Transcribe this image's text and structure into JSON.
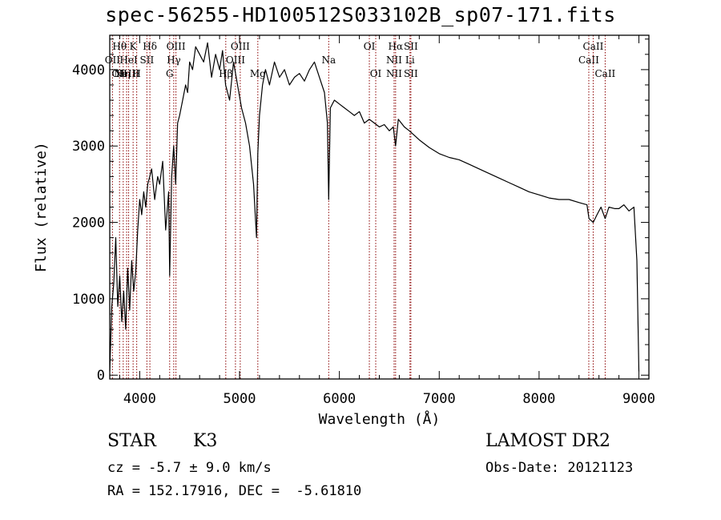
{
  "title": "spec-56255-HD100512S033102B_sp07-171.fits",
  "footer": {
    "class_label": "STAR",
    "subclass": "K3",
    "cz": "cz = -5.7 ± 9.0 km/s",
    "radec": "RA = 152.17916, DEC =  -5.61810",
    "survey": "LAMOST DR2",
    "obs_date": "Obs-Date: 20121123"
  },
  "chart_data": {
    "type": "line",
    "title": "spec-56255-HD100512S033102B_sp07-171.fits",
    "xlabel": "Wavelength (Å)",
    "ylabel": "Flux (relative)",
    "xlim": [
      3700,
      9100
    ],
    "ylim": [
      -50,
      4450
    ],
    "xticks": [
      4000,
      5000,
      6000,
      7000,
      8000,
      9000
    ],
    "yticks": [
      0,
      1000,
      2000,
      3000,
      4000
    ],
    "grid": false,
    "line_color": "#000000",
    "marker_color": "#8b0000",
    "series": [
      {
        "x": [
          3700,
          3720,
          3740,
          3760,
          3780,
          3800,
          3820,
          3840,
          3860,
          3880,
          3900,
          3920,
          3940,
          3960,
          3980,
          4000,
          4020,
          4040,
          4060,
          4080,
          4100,
          4120,
          4150,
          4180,
          4200,
          4230,
          4260,
          4290,
          4300,
          4320,
          4340,
          4360,
          4380,
          4400,
          4430,
          4460,
          4480,
          4500,
          4530,
          4560,
          4600,
          4640,
          4680,
          4720,
          4760,
          4800,
          4830,
          4860,
          4900,
          4940,
          4980,
          5020,
          5060,
          5100,
          5140,
          5170,
          5183,
          5200,
          5230,
          5260,
          5300,
          5350,
          5400,
          5450,
          5500,
          5550,
          5600,
          5650,
          5700,
          5750,
          5800,
          5850,
          5880,
          5893,
          5910,
          5950,
          6000,
          6050,
          6100,
          6150,
          6200,
          6250,
          6300,
          6350,
          6400,
          6450,
          6500,
          6540,
          6563,
          6590,
          6650,
          6700,
          6800,
          6900,
          7000,
          7100,
          7200,
          7300,
          7400,
          7500,
          7600,
          7700,
          7800,
          7900,
          8000,
          8100,
          8200,
          8300,
          8400,
          8480,
          8500,
          8542,
          8580,
          8620,
          8662,
          8700,
          8760,
          8800,
          8850,
          8900,
          8950,
          8980,
          9000
        ],
        "values": [
          50,
          900,
          1200,
          1800,
          900,
          1300,
          700,
          1100,
          600,
          1400,
          850,
          1500,
          1100,
          1350,
          1900,
          2300,
          2100,
          2400,
          2200,
          2500,
          2600,
          2700,
          2300,
          2600,
          2500,
          2800,
          1900,
          2400,
          1300,
          2600,
          3000,
          2500,
          3300,
          3400,
          3600,
          3800,
          3700,
          4100,
          4000,
          4300,
          4200,
          4100,
          4350,
          3900,
          4200,
          4000,
          4250,
          3800,
          3600,
          4100,
          3800,
          3500,
          3300,
          3000,
          2500,
          1800,
          2900,
          3400,
          3800,
          4000,
          3800,
          4100,
          3900,
          4000,
          3800,
          3900,
          3950,
          3850,
          4000,
          4100,
          3900,
          3700,
          3300,
          2300,
          3500,
          3600,
          3550,
          3500,
          3450,
          3400,
          3450,
          3300,
          3350,
          3300,
          3250,
          3280,
          3200,
          3250,
          3000,
          3350,
          3250,
          3200,
          3080,
          2980,
          2900,
          2850,
          2820,
          2760,
          2700,
          2640,
          2580,
          2520,
          2460,
          2400,
          2360,
          2320,
          2300,
          2300,
          2260,
          2230,
          2050,
          2000,
          2100,
          2200,
          2050,
          2200,
          2180,
          2180,
          2230,
          2150,
          2200,
          1500,
          50
        ]
      }
    ],
    "line_markers": [
      {
        "w": 3727,
        "rows": [
          [
            "OII",
            2
          ]
        ]
      },
      {
        "w": 3798,
        "rows": [
          [
            "Hθ",
            1
          ],
          [
            "OII",
            3
          ]
        ]
      },
      {
        "w": 3835,
        "rows": [
          [
            "Hη",
            3
          ]
        ]
      },
      {
        "w": 3869,
        "rows": [
          [
            "NeIII",
            3
          ]
        ]
      },
      {
        "w": 3889,
        "rows": [
          [
            "HeI",
            2
          ]
        ]
      },
      {
        "w": 3934,
        "rows": [
          [
            "K",
            1
          ]
        ]
      },
      {
        "w": 3970,
        "rows": [
          [
            "H",
            3
          ]
        ]
      },
      {
        "w": 4072,
        "rows": [
          [
            "SII",
            2
          ]
        ]
      },
      {
        "w": 4102,
        "rows": [
          [
            "Hδ",
            1
          ]
        ]
      },
      {
        "w": 4300,
        "rows": [
          [
            "G",
            3
          ]
        ]
      },
      {
        "w": 4341,
        "rows": [
          [
            "Hγ",
            2
          ]
        ]
      },
      {
        "w": 4363,
        "rows": [
          [
            "OIII",
            1
          ]
        ]
      },
      {
        "w": 4862,
        "rows": [
          [
            "Hβ",
            3
          ]
        ]
      },
      {
        "w": 4959,
        "rows": [
          [
            "OIII",
            2
          ]
        ]
      },
      {
        "w": 5007,
        "rows": [
          [
            "OIII",
            1
          ]
        ]
      },
      {
        "w": 5183,
        "rows": [
          [
            "Mg",
            3
          ]
        ]
      },
      {
        "w": 5893,
        "rows": [
          [
            "Na",
            2
          ]
        ]
      },
      {
        "w": 6300,
        "rows": [
          [
            "OI",
            1
          ]
        ]
      },
      {
        "w": 6364,
        "rows": [
          [
            "OI",
            3
          ]
        ]
      },
      {
        "w": 6548,
        "rows": [
          [
            "NII",
            2
          ],
          [
            "NII",
            3
          ]
        ]
      },
      {
        "w": 6563,
        "rows": [
          [
            "Hα",
            1
          ]
        ]
      },
      {
        "w": 6707,
        "rows": [
          [
            "Li",
            2
          ]
        ]
      },
      {
        "w": 6716,
        "rows": [
          [
            "SII",
            1
          ],
          [
            "SII",
            3
          ]
        ]
      },
      {
        "w": 8498,
        "rows": [
          [
            "CaII",
            2
          ]
        ]
      },
      {
        "w": 8542,
        "rows": [
          [
            "CaII",
            1
          ]
        ]
      },
      {
        "w": 8662,
        "rows": [
          [
            "CaII",
            3
          ]
        ]
      }
    ]
  }
}
